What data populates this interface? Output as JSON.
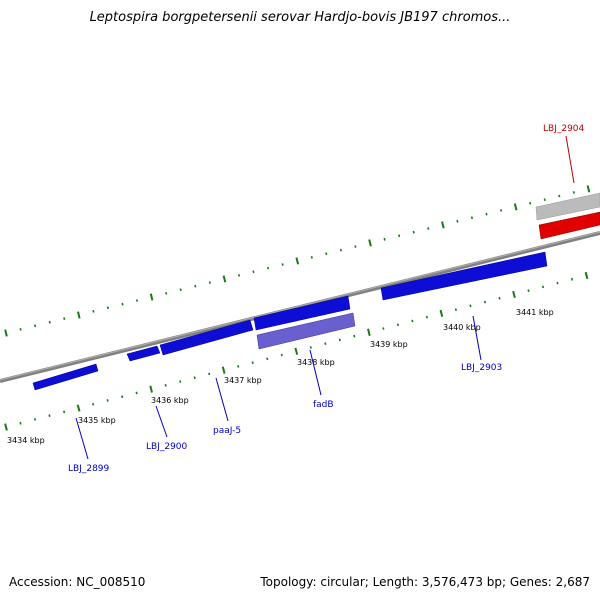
{
  "title": "Leptospira borgpetersenii serovar Hardjo-bovis JB197 chromos...",
  "accession": "Accession: NC_008510",
  "stats": "Topology: circular; Length: 3,576,473 bp; Genes: 2,687",
  "colors": {
    "gene_blue": "#0d0dd6",
    "gene_purple": "#6a5fcf",
    "rna_red": "#e00000",
    "gray_feature": "#bbbbbb",
    "tick_green": "#1a7a1a",
    "label_blue": "#0000c0",
    "label_red": "#c00000"
  },
  "ticks": [
    {
      "label": "3434 kbp"
    },
    {
      "label": "3435 kbp"
    },
    {
      "label": "3436 kbp"
    },
    {
      "label": "3437 kbp"
    },
    {
      "label": "3438 kbp"
    },
    {
      "label": "3439 kbp"
    },
    {
      "label": "3440 kbp"
    },
    {
      "label": "3441 kbp"
    }
  ],
  "genes": [
    {
      "name": "LBJ_2899"
    },
    {
      "name": "LBJ_2900"
    },
    {
      "name": "paaJ-5"
    },
    {
      "name": "fadB"
    },
    {
      "name": "LBJ_2903"
    },
    {
      "name": "LBJ_2904"
    }
  ]
}
